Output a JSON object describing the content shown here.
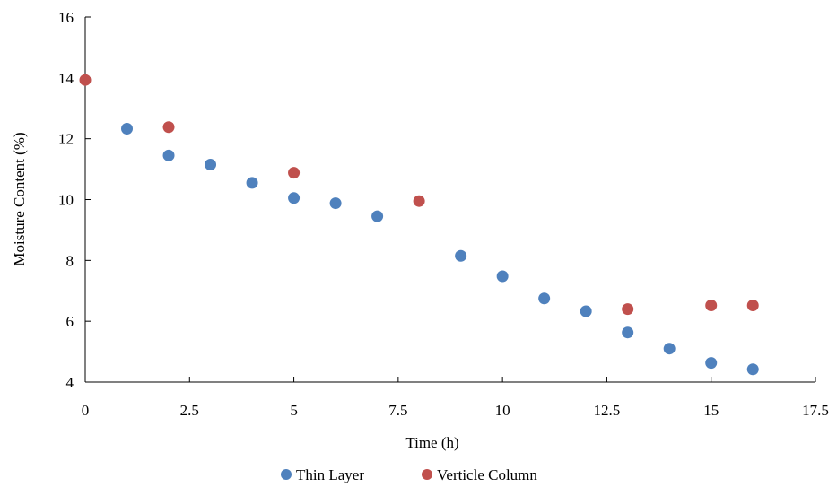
{
  "chart_data": {
    "type": "scatter",
    "title": "",
    "xlabel": "Time (h)",
    "ylabel": "Moisture Content (%)",
    "xlim": [
      0,
      17.5
    ],
    "ylim": [
      4,
      16
    ],
    "xticks": [
      0,
      2.5,
      5,
      7.5,
      10,
      12.5,
      15,
      17.5
    ],
    "xtick_labels": [
      "0",
      "2.5",
      "5",
      "7.5",
      "10",
      "12.5",
      "15",
      "17.5"
    ],
    "yticks": [
      4,
      6,
      8,
      10,
      12,
      14,
      16
    ],
    "ytick_labels": [
      "4",
      "6",
      "8",
      "10",
      "12",
      "14",
      "16"
    ],
    "grid": false,
    "legend_position": "bottom",
    "series": [
      {
        "name": "Thin Layer",
        "color": "#4f81bd",
        "x": [
          1,
          2,
          3,
          4,
          5,
          6,
          7,
          9,
          10,
          11,
          12,
          13,
          14,
          15,
          16
        ],
        "y": [
          12.33,
          11.45,
          11.15,
          10.55,
          10.05,
          9.88,
          9.45,
          8.15,
          7.48,
          6.75,
          6.33,
          5.63,
          5.1,
          4.63,
          4.42
        ]
      },
      {
        "name": "Verticle Column",
        "color": "#c0504d",
        "x": [
          0,
          2,
          5,
          8,
          13,
          15,
          16
        ],
        "y": [
          13.93,
          12.38,
          10.88,
          9.95,
          6.4,
          6.52,
          6.52
        ]
      }
    ]
  }
}
